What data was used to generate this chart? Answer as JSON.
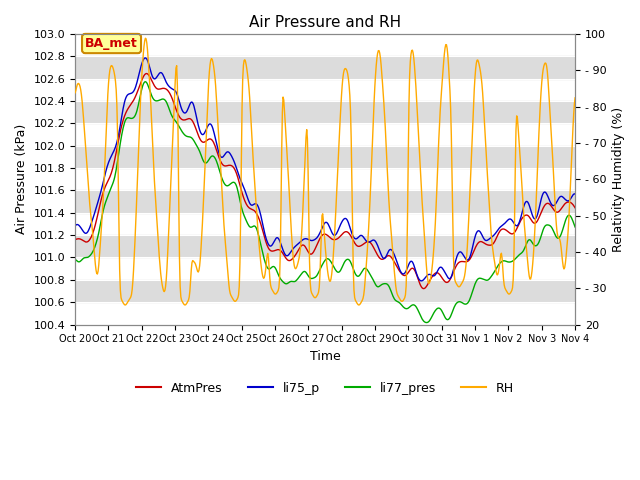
{
  "title": "Air Pressure and RH",
  "xlabel": "Time",
  "ylabel_left": "Air Pressure (kPa)",
  "ylabel_right": "Relativity Humidity (%)",
  "ylim_left": [
    100.4,
    103.0
  ],
  "ylim_right": [
    20,
    100
  ],
  "yticks_left": [
    100.4,
    100.6,
    100.8,
    101.0,
    101.2,
    101.4,
    101.6,
    101.8,
    102.0,
    102.2,
    102.4,
    102.6,
    102.8,
    103.0
  ],
  "yticks_right": [
    20,
    30,
    40,
    50,
    60,
    70,
    80,
    90,
    100
  ],
  "xtick_labels": [
    "Oct 20",
    "Oct 21",
    "Oct 22",
    "Oct 23",
    "Oct 24",
    "Oct 25",
    "Oct 26",
    "Oct 27",
    "Oct 28",
    "Oct 29",
    "Oct 30",
    "Oct 31",
    "Nov 1",
    "Nov 2",
    "Nov 3",
    "Nov 4"
  ],
  "colors": {
    "AtmPres": "#cc0000",
    "li75_p": "#0000cc",
    "li77_pres": "#00aa00",
    "RH": "#ffaa00"
  },
  "legend_labels": [
    "AtmPres",
    "li75_p",
    "li77_pres",
    "RH"
  ],
  "background_gray": "#dcdcdc",
  "annotation_text": "BA_met",
  "annotation_color": "#cc0000",
  "annotation_bg": "#ffff99",
  "annotation_border": "#cc8800",
  "figsize": [
    6.4,
    4.8
  ],
  "dpi": 100
}
